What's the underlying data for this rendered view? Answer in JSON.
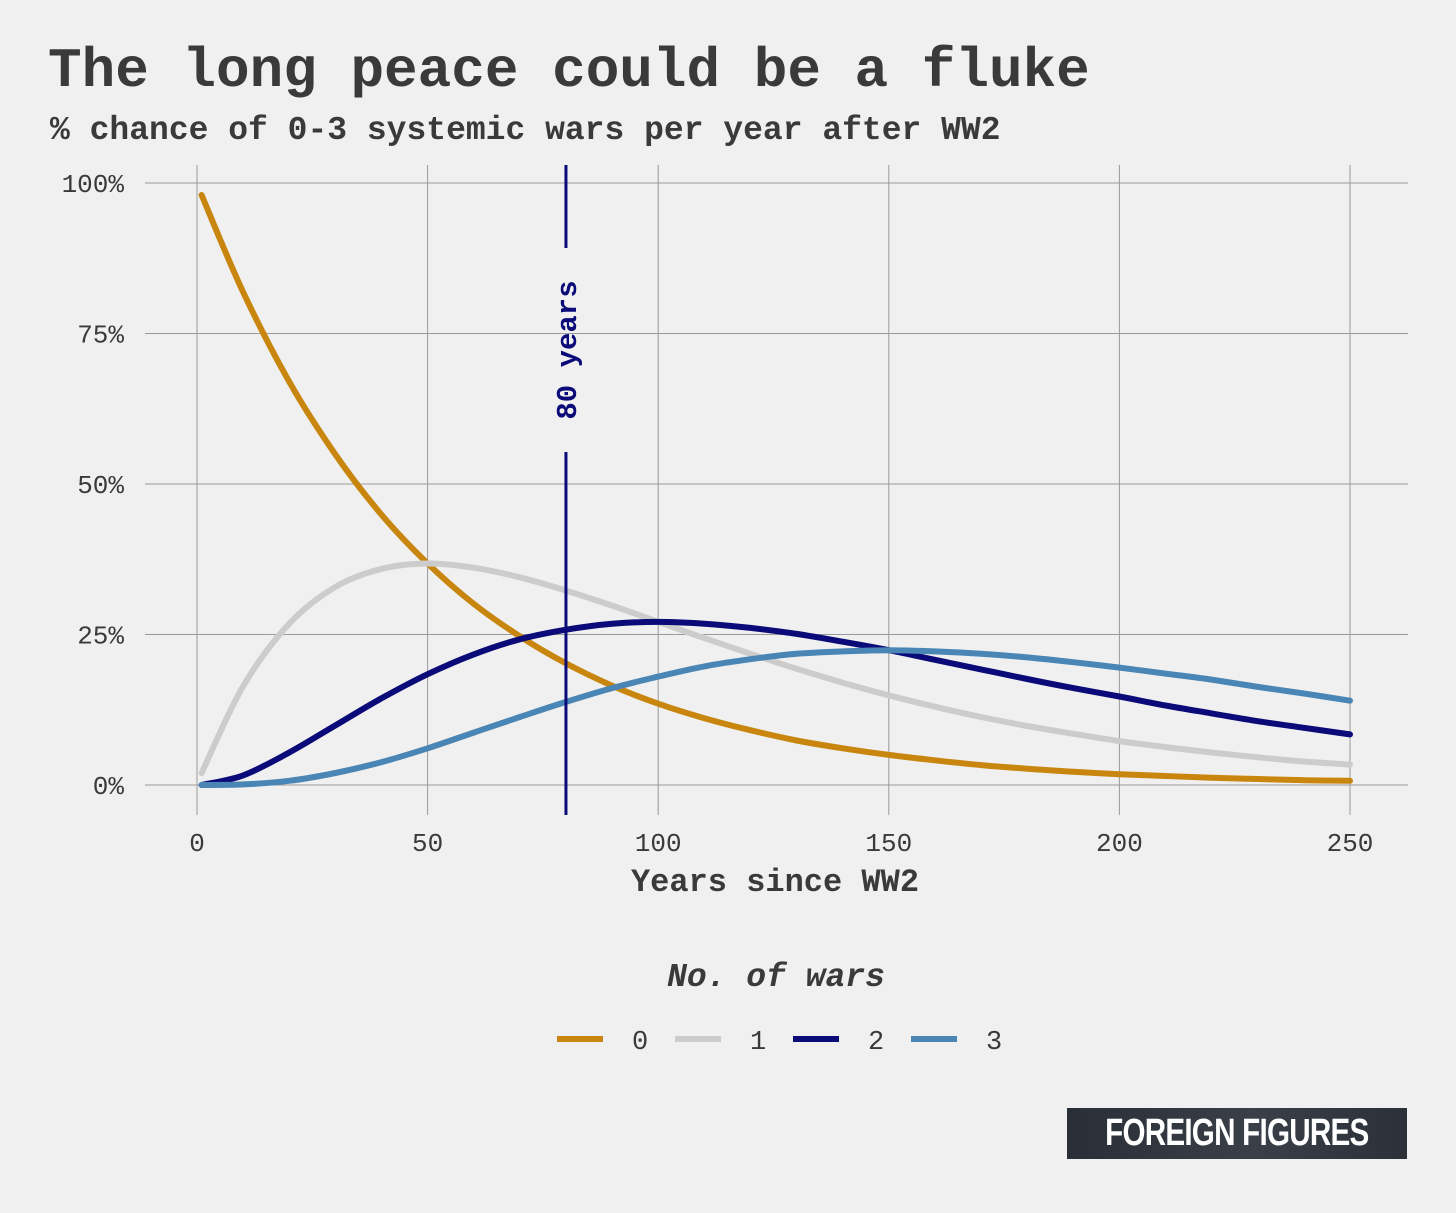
{
  "logo_text": "FOREIGN FIGURES",
  "chart_data": {
    "type": "line",
    "title": "The long peace could be a fluke",
    "subtitle": "% chance of 0-3 systemic wars per year after WW2",
    "xlabel": "Years since WW2",
    "ylabel": "",
    "xlim": [
      0,
      250
    ],
    "ylim": [
      0,
      100
    ],
    "x_ticks": [
      0,
      50,
      100,
      150,
      200,
      250
    ],
    "x_tick_labels": [
      "0",
      "50",
      "100",
      "150",
      "200",
      "250"
    ],
    "y_ticks": [
      0,
      25,
      50,
      75,
      100
    ],
    "y_tick_labels": [
      "0%",
      "25%",
      "50%",
      "75%",
      "100%"
    ],
    "grid": true,
    "legend": {
      "title": "No. of wars",
      "placement": "bottom"
    },
    "annotation": {
      "x": 80,
      "label": "80 years",
      "color": "#0a0a78"
    },
    "x": [
      1,
      10,
      20,
      30,
      40,
      50,
      60,
      70,
      80,
      90,
      100,
      110,
      120,
      130,
      140,
      150,
      160,
      170,
      180,
      190,
      200,
      210,
      220,
      230,
      240,
      250
    ],
    "series": [
      {
        "name": "0",
        "color": "#c8860e",
        "values": [
          98,
          81.9,
          67.0,
          54.9,
          44.9,
          36.8,
          30.1,
          24.7,
          20.2,
          16.5,
          13.5,
          11.1,
          9.1,
          7.4,
          6.1,
          5.0,
          4.1,
          3.3,
          2.7,
          2.2,
          1.8,
          1.5,
          1.2,
          1.0,
          0.8,
          0.7
        ]
      },
      {
        "name": "1",
        "color": "#cccccc",
        "values": [
          2,
          16.4,
          26.8,
          32.9,
          35.9,
          36.8,
          36.1,
          34.5,
          32.3,
          29.8,
          27.1,
          24.4,
          21.8,
          19.3,
          17.0,
          14.9,
          13.0,
          11.3,
          9.8,
          8.5,
          7.3,
          6.3,
          5.4,
          4.6,
          3.9,
          3.4
        ]
      },
      {
        "name": "2",
        "color": "#0a0a78",
        "values": [
          0,
          1.6,
          5.4,
          9.9,
          14.4,
          18.4,
          21.7,
          24.2,
          25.8,
          26.8,
          27.1,
          26.8,
          26.1,
          25.1,
          23.8,
          22.4,
          20.8,
          19.2,
          17.6,
          16.1,
          14.7,
          13.2,
          11.9,
          10.6,
          9.5,
          8.4
        ]
      },
      {
        "name": "3",
        "color": "#4a86b5",
        "values": [
          0,
          0.1,
          0.7,
          2.0,
          3.8,
          6.1,
          8.7,
          11.3,
          13.8,
          16.1,
          18.0,
          19.7,
          20.9,
          21.8,
          22.2,
          22.4,
          22.2,
          21.8,
          21.2,
          20.4,
          19.5,
          18.5,
          17.5,
          16.3,
          15.2,
          14.0
        ]
      }
    ]
  }
}
